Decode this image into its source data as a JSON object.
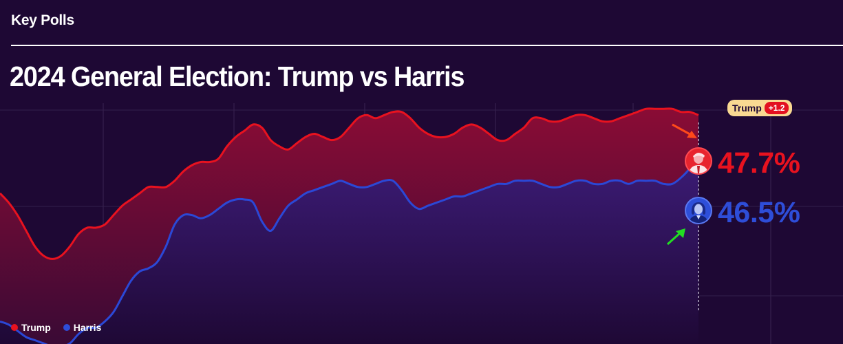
{
  "header": {
    "title": "Key Polls"
  },
  "chart_data": {
    "type": "area",
    "title": "2024 General Election: Trump vs Harris",
    "xlabel": "",
    "ylabel": "",
    "ylim": [
      39.5,
      50.5
    ],
    "grid": true,
    "legend_position": "bottom-left",
    "x": [
      0,
      1,
      2,
      3,
      4,
      5,
      6,
      7,
      8,
      9,
      10,
      11,
      12,
      13,
      14,
      15,
      16,
      17,
      18,
      19,
      20,
      21,
      22,
      23,
      24,
      25,
      26,
      27,
      28,
      29,
      30,
      31,
      32,
      33,
      34,
      35,
      36,
      37,
      38,
      39,
      40,
      41,
      42,
      43,
      44,
      45,
      46,
      47,
      48,
      49,
      50,
      51,
      52,
      53,
      54,
      55,
      56,
      57,
      58,
      59,
      60,
      61,
      62,
      63,
      64,
      65,
      66,
      67,
      68,
      69,
      70,
      71,
      72,
      73,
      74,
      75,
      76,
      77,
      78,
      79,
      80
    ],
    "series": [
      {
        "name": "Trump",
        "color": "#e8121f",
        "values": [
          45.2,
          44.9,
          44.5,
          44.0,
          43.5,
          43.2,
          43.1,
          43.2,
          43.5,
          43.9,
          44.1,
          44.1,
          44.2,
          44.5,
          44.8,
          45.0,
          45.2,
          45.4,
          45.4,
          45.4,
          45.6,
          45.9,
          46.1,
          46.2,
          46.2,
          46.3,
          46.7,
          47.0,
          47.2,
          47.4,
          47.3,
          46.9,
          46.7,
          46.6,
          46.8,
          47.0,
          47.1,
          47.0,
          46.9,
          47.0,
          47.3,
          47.6,
          47.7,
          47.6,
          47.7,
          47.8,
          47.8,
          47.6,
          47.3,
          47.1,
          47.0,
          47.0,
          47.1,
          47.3,
          47.4,
          47.3,
          47.1,
          46.9,
          46.9,
          47.1,
          47.3,
          47.6,
          47.6,
          47.5,
          47.5,
          47.6,
          47.7,
          47.7,
          47.6,
          47.5,
          47.5,
          47.6,
          47.7,
          47.8,
          47.9,
          47.9,
          47.9,
          47.9,
          47.8,
          47.8,
          47.7
        ]
      },
      {
        "name": "Harris",
        "color": "#2e4dd8",
        "values": [
          41.1,
          41.0,
          40.8,
          40.6,
          40.5,
          40.4,
          40.3,
          40.3,
          40.4,
          40.7,
          40.9,
          40.9,
          41.1,
          41.4,
          41.9,
          42.4,
          42.7,
          42.8,
          43.0,
          43.5,
          44.2,
          44.5,
          44.5,
          44.4,
          44.5,
          44.7,
          44.9,
          45.0,
          45.0,
          44.9,
          44.3,
          44.0,
          44.4,
          44.8,
          45.0,
          45.2,
          45.3,
          45.4,
          45.5,
          45.6,
          45.5,
          45.4,
          45.4,
          45.5,
          45.6,
          45.6,
          45.3,
          44.9,
          44.7,
          44.8,
          44.9,
          45.0,
          45.1,
          45.1,
          45.2,
          45.3,
          45.4,
          45.5,
          45.5,
          45.6,
          45.6,
          45.6,
          45.5,
          45.4,
          45.4,
          45.5,
          45.6,
          45.6,
          45.5,
          45.5,
          45.6,
          45.6,
          45.5,
          45.6,
          45.6,
          45.6,
          45.5,
          45.5,
          45.7,
          46.0,
          46.5
        ]
      }
    ],
    "annotations": {
      "leader_label": "Trump",
      "margin": "+1.2",
      "current": [
        {
          "name": "Trump",
          "value": "47.7%"
        },
        {
          "name": "Harris",
          "value": "46.5%"
        }
      ]
    },
    "legend": [
      {
        "name": "Trump",
        "color": "#e8121f"
      },
      {
        "name": "Harris",
        "color": "#2e4dd8"
      }
    ]
  }
}
